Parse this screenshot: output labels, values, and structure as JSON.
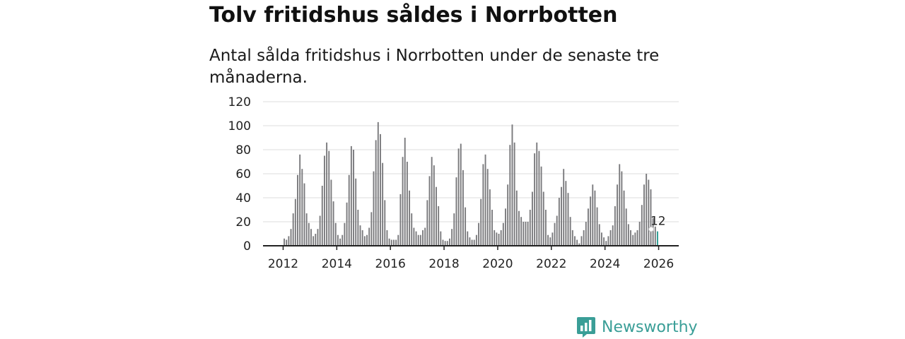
{
  "header": {
    "title": "Tolv fritidshus såldes i Norrbotten",
    "subtitle": "Antal sålda fritidshus i Norrbotten under de senaste tre månaderna."
  },
  "brand": {
    "name": "Newsworthy"
  },
  "colors": {
    "bar": "#7a7a7d",
    "highlight": "#2a9d92",
    "axis": "#222222",
    "grid": "#dddddd",
    "brand": "#3a9e97"
  },
  "chart_data": {
    "type": "bar",
    "title": "Tolv fritidshus såldes i Norrbotten",
    "subtitle": "Antal sålda fritidshus i Norrbotten under de senaste tre månaderna.",
    "xlabel": "",
    "ylabel": "",
    "ylim": [
      0,
      120
    ],
    "yticks": [
      0,
      20,
      40,
      60,
      80,
      100,
      120
    ],
    "xlim": [
      2011.25,
      2026.75
    ],
    "xticks": [
      "2012",
      "2014",
      "2016",
      "2018",
      "2020",
      "2022",
      "2024",
      "2026"
    ],
    "grid": true,
    "series_start": "2012-01",
    "frequency": "monthly",
    "values": [
      6,
      5,
      8,
      14,
      27,
      39,
      59,
      76,
      64,
      52,
      27,
      19,
      14,
      8,
      10,
      14,
      25,
      50,
      75,
      86,
      79,
      55,
      37,
      19,
      9,
      6,
      9,
      19,
      36,
      59,
      83,
      80,
      56,
      30,
      17,
      13,
      8,
      9,
      15,
      28,
      62,
      88,
      103,
      93,
      69,
      38,
      13,
      6,
      5,
      5,
      5,
      9,
      43,
      74,
      90,
      70,
      46,
      27,
      15,
      12,
      9,
      9,
      13,
      15,
      38,
      58,
      74,
      67,
      49,
      33,
      12,
      5,
      4,
      4,
      6,
      14,
      27,
      57,
      81,
      85,
      63,
      32,
      12,
      7,
      5,
      5,
      9,
      19,
      39,
      68,
      76,
      64,
      47,
      30,
      13,
      11,
      10,
      13,
      19,
      31,
      51,
      84,
      101,
      86,
      46,
      29,
      24,
      20,
      20,
      20,
      30,
      45,
      77,
      86,
      79,
      66,
      45,
      30,
      9,
      7,
      11,
      19,
      25,
      40,
      49,
      64,
      54,
      44,
      24,
      13,
      8,
      5,
      2,
      8,
      13,
      20,
      31,
      41,
      51,
      46,
      32,
      18,
      11,
      7,
      4,
      8,
      13,
      17,
      33,
      51,
      68,
      62,
      46,
      31,
      18,
      13,
      9,
      11,
      13,
      20,
      34,
      51,
      60,
      55,
      47,
      23,
      16,
      12
    ],
    "highlight": {
      "index": 167,
      "value": 12,
      "label": "12"
    }
  }
}
